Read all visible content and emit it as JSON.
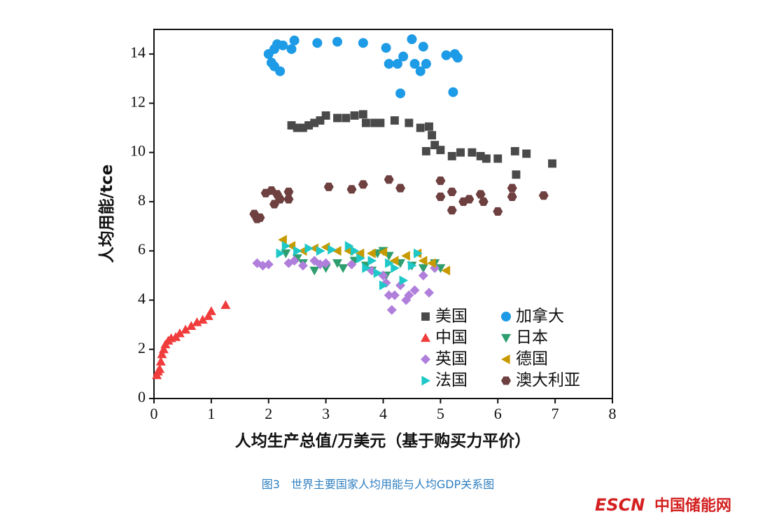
{
  "chart_data": {
    "type": "scatter",
    "xlabel": "人均生产总值/万美元（基于购买力平价）",
    "ylabel": "人均用能/tce",
    "xlim": [
      0,
      8
    ],
    "xticks": [
      0,
      1,
      2,
      3,
      4,
      5,
      6,
      7,
      8
    ],
    "ylim": [
      0,
      15
    ],
    "yticks": [
      0,
      2,
      4,
      6,
      8,
      10,
      12,
      14
    ],
    "legend": "lower right",
    "series": [
      {
        "name": "美国",
        "color": "#4a4a4a",
        "marker": "square",
        "x": [
          2.4,
          2.5,
          2.6,
          2.7,
          2.8,
          2.9,
          3.0,
          3.2,
          3.35,
          3.5,
          3.65,
          3.7,
          3.85,
          3.95,
          4.2,
          4.45,
          4.65,
          4.8,
          4.85,
          4.75,
          4.9,
          5.0,
          5.2,
          5.35,
          5.55,
          5.7,
          5.8,
          6.0,
          6.3,
          6.32,
          6.5,
          6.95
        ],
        "values": [
          11.1,
          11.0,
          11.0,
          11.1,
          11.2,
          11.3,
          11.5,
          11.4,
          11.4,
          11.5,
          11.55,
          11.2,
          11.2,
          11.2,
          11.3,
          11.2,
          11.0,
          11.05,
          10.7,
          10.05,
          10.3,
          10.1,
          9.85,
          10.0,
          10.0,
          9.85,
          9.75,
          9.75,
          10.05,
          9.1,
          9.95,
          9.55
        ]
      },
      {
        "name": "加拿大",
        "color": "#1e9be6",
        "marker": "circle",
        "x": [
          2.0,
          2.1,
          2.15,
          2.25,
          2.05,
          2.1,
          2.2,
          2.4,
          2.45,
          2.85,
          3.2,
          3.65,
          4.05,
          4.1,
          4.25,
          4.35,
          4.3,
          4.5,
          4.55,
          4.65,
          4.7,
          4.75,
          5.1,
          5.25,
          5.3,
          5.22
        ],
        "values": [
          14.0,
          14.2,
          14.4,
          14.35,
          13.65,
          13.5,
          13.3,
          14.2,
          14.55,
          14.45,
          14.5,
          14.45,
          14.25,
          13.6,
          13.6,
          13.9,
          12.4,
          14.6,
          13.6,
          13.3,
          14.3,
          13.6,
          13.95,
          14.0,
          13.85,
          12.45
        ]
      },
      {
        "name": "中国",
        "color": "#f03c3c",
        "marker": "tri-up",
        "x": [
          0.05,
          0.07,
          0.1,
          0.12,
          0.14,
          0.17,
          0.2,
          0.25,
          0.3,
          0.38,
          0.45,
          0.55,
          0.65,
          0.75,
          0.85,
          0.95,
          1.0,
          1.25
        ],
        "values": [
          0.95,
          1.1,
          1.2,
          1.5,
          1.8,
          2.0,
          2.2,
          2.35,
          2.45,
          2.5,
          2.65,
          2.8,
          2.95,
          3.1,
          3.2,
          3.35,
          3.55,
          3.8
        ]
      },
      {
        "name": "日本",
        "color": "#2e9e6e",
        "marker": "tri-down",
        "x": [
          2.3,
          2.5,
          2.6,
          2.8,
          3.0,
          3.2,
          3.3,
          3.5,
          3.7,
          3.8,
          3.9,
          4.0,
          4.1,
          4.3,
          4.5,
          4.7,
          4.9,
          5.0,
          4.05
        ],
        "values": [
          5.9,
          5.7,
          5.5,
          5.2,
          5.3,
          5.5,
          5.3,
          5.6,
          5.4,
          5.2,
          5.9,
          6.0,
          5.8,
          5.5,
          5.4,
          5.3,
          5.5,
          5.3,
          5.0
        ]
      },
      {
        "name": "英国",
        "color": "#b07fdb",
        "marker": "diamond",
        "x": [
          1.8,
          1.9,
          2.0,
          2.35,
          2.45,
          2.6,
          2.8,
          2.9,
          3.0,
          3.45,
          3.8,
          4.0,
          4.05,
          4.1,
          4.15,
          4.2,
          4.3,
          4.4,
          4.45,
          4.55,
          4.7,
          4.8,
          4.9
        ],
        "values": [
          5.5,
          5.4,
          5.45,
          5.5,
          5.6,
          5.4,
          5.6,
          5.45,
          5.5,
          5.45,
          5.2,
          5.0,
          4.7,
          4.2,
          3.6,
          4.2,
          4.6,
          4.0,
          4.2,
          4.4,
          5.0,
          4.3,
          5.3
        ]
      },
      {
        "name": "德国",
        "color": "#c79a00",
        "marker": "tri-left",
        "x": [
          2.25,
          2.4,
          2.6,
          2.8,
          3.0,
          3.2,
          3.4,
          3.6,
          3.8,
          4.0,
          4.2,
          4.4,
          4.6,
          4.7,
          4.85,
          5.1
        ],
        "values": [
          6.45,
          6.2,
          6.0,
          6.1,
          6.15,
          6.0,
          6.0,
          5.9,
          5.9,
          5.95,
          5.6,
          5.8,
          5.9,
          5.6,
          5.5,
          5.2
        ]
      },
      {
        "name": "法国",
        "color": "#1ec8c8",
        "marker": "tri-right",
        "x": [
          2.2,
          2.3,
          2.5,
          2.7,
          2.9,
          3.1,
          3.4,
          3.5,
          3.6,
          3.8,
          3.9,
          4.0,
          4.1,
          4.2,
          4.35,
          4.5,
          4.6,
          3.7
        ],
        "values": [
          5.9,
          6.2,
          6.0,
          6.1,
          6.0,
          6.05,
          6.2,
          6.0,
          5.7,
          5.6,
          5.1,
          4.6,
          5.5,
          5.3,
          4.8,
          5.4,
          5.9,
          5.3
        ]
      },
      {
        "name": "澳大利亚",
        "color": "#6e4040",
        "marker": "hexagon",
        "x": [
          1.75,
          1.8,
          1.85,
          1.95,
          2.05,
          2.1,
          2.15,
          2.2,
          2.35,
          2.35,
          3.05,
          3.45,
          3.65,
          4.1,
          4.3,
          5.0,
          5.0,
          5.2,
          5.2,
          5.4,
          5.5,
          5.7,
          5.75,
          6.0,
          6.25,
          6.25,
          6.8
        ],
        "values": [
          7.5,
          7.3,
          7.35,
          8.35,
          8.45,
          7.9,
          8.3,
          8.1,
          8.4,
          8.1,
          8.6,
          8.5,
          8.7,
          8.9,
          8.55,
          8.85,
          8.2,
          8.4,
          7.65,
          8.0,
          8.1,
          8.3,
          8.0,
          7.6,
          8.55,
          8.2,
          8.25
        ]
      }
    ]
  },
  "caption": "图3　世界主要国家人均用能与人均GDP关系图",
  "logo": {
    "brand": "ESCN",
    "name": "中国储能网"
  }
}
